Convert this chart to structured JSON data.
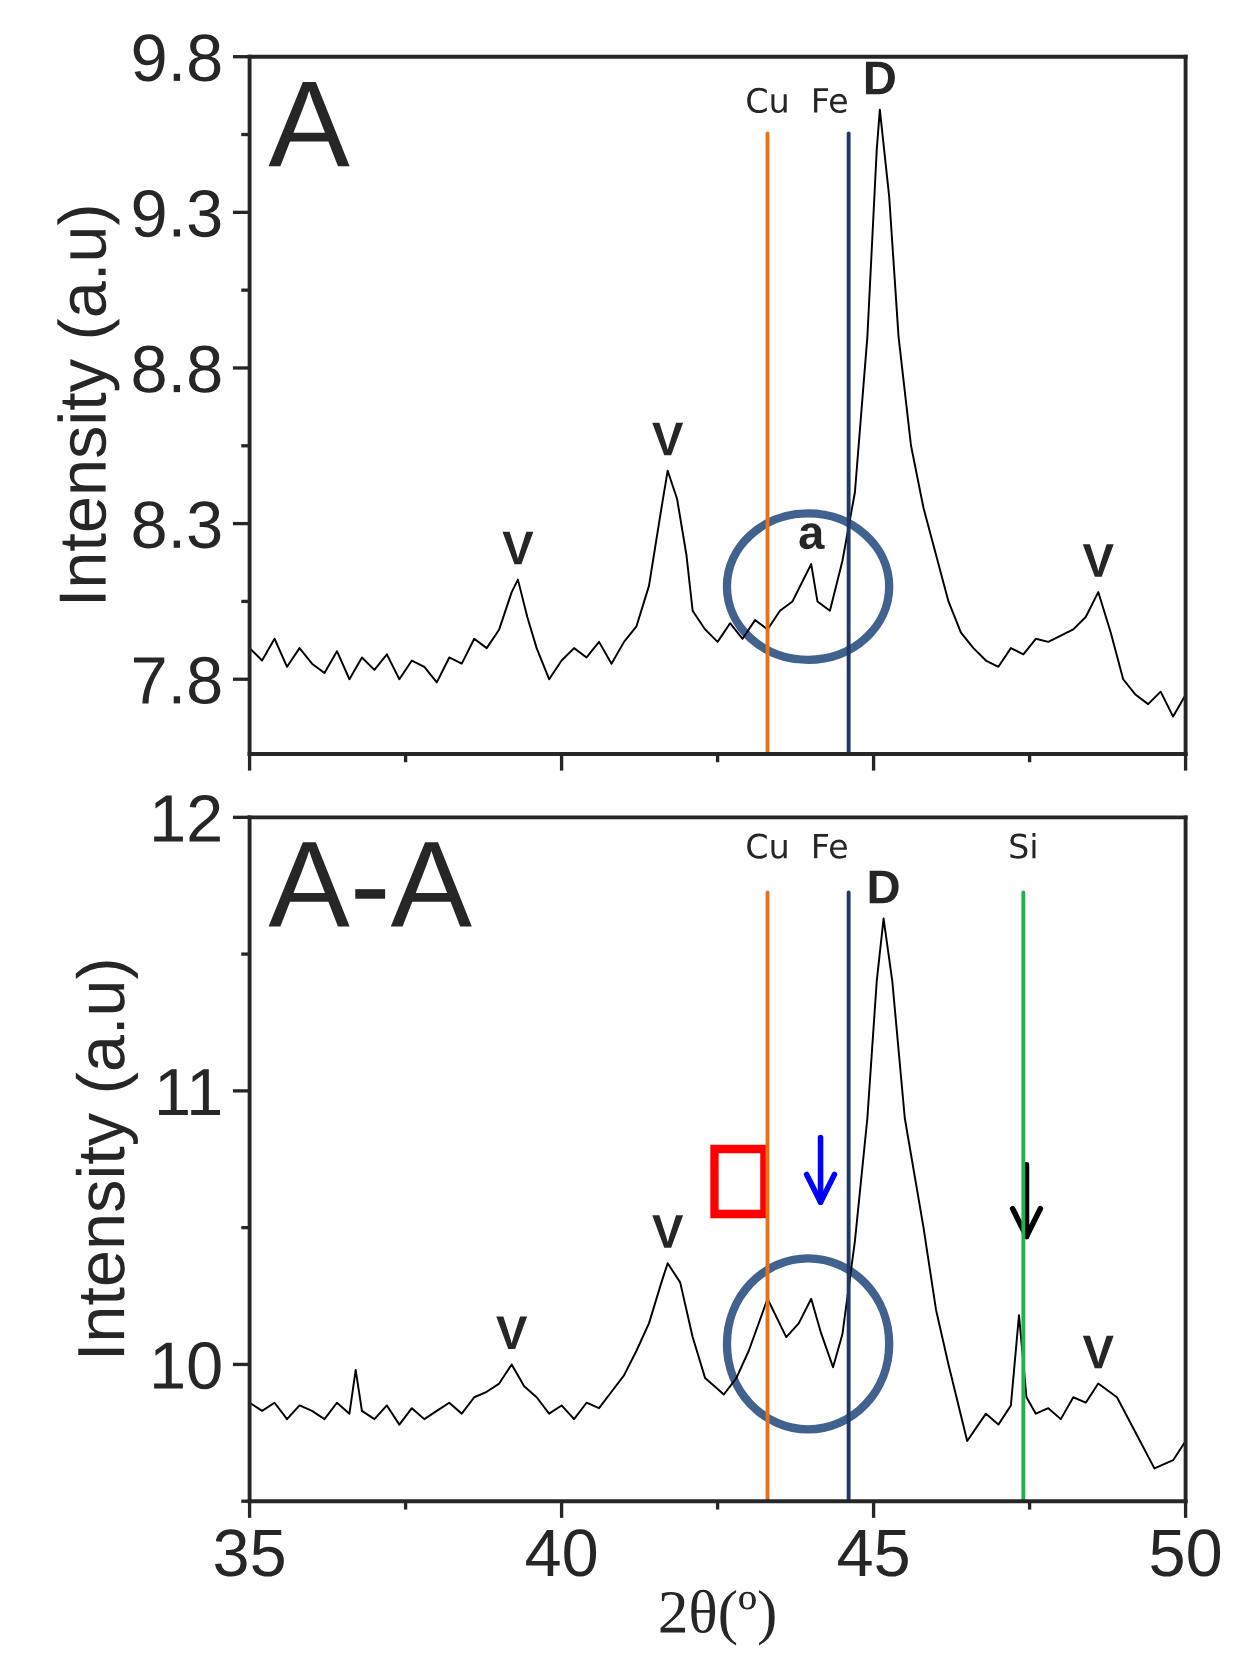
{
  "chart_data": [
    {
      "type": "line",
      "title": "A",
      "ylabel": "Intensity (a.u)",
      "x": [
        35.0,
        35.2,
        35.4,
        35.6,
        35.8,
        36.0,
        36.2,
        36.4,
        36.6,
        36.8,
        37.0,
        37.2,
        37.4,
        37.6,
        37.8,
        38.0,
        38.2,
        38.4,
        38.6,
        38.8,
        39.0,
        39.2,
        39.3,
        39.45,
        39.6,
        39.8,
        40.0,
        40.2,
        40.4,
        40.6,
        40.8,
        41.0,
        41.2,
        41.4,
        41.6,
        41.7,
        41.85,
        42.0,
        42.1,
        42.3,
        42.5,
        42.7,
        42.9,
        43.1,
        43.3,
        43.5,
        43.7,
        43.9,
        44.0,
        44.1,
        44.3,
        44.5,
        44.7,
        44.9,
        45.05,
        45.1,
        45.25,
        45.4,
        45.6,
        45.8,
        46.0,
        46.2,
        46.4,
        46.6,
        46.8,
        47.0,
        47.2,
        47.4,
        47.6,
        47.8,
        48.0,
        48.2,
        48.4,
        48.6,
        48.8,
        49.0,
        49.2,
        49.4,
        49.6,
        49.8,
        50.0
      ],
      "series": [
        {
          "color": "#000000",
          "values": [
            7.9,
            7.86,
            7.93,
            7.84,
            7.9,
            7.85,
            7.82,
            7.89,
            7.8,
            7.87,
            7.83,
            7.88,
            7.8,
            7.86,
            7.84,
            7.79,
            7.87,
            7.85,
            7.93,
            7.9,
            7.96,
            8.08,
            8.12,
            8.0,
            7.9,
            7.8,
            7.86,
            7.9,
            7.87,
            7.92,
            7.85,
            7.92,
            7.97,
            8.1,
            8.35,
            8.47,
            8.38,
            8.2,
            8.02,
            7.96,
            7.92,
            7.98,
            7.93,
            7.99,
            7.96,
            8.02,
            8.05,
            8.13,
            8.17,
            8.05,
            8.02,
            8.18,
            8.4,
            8.9,
            9.5,
            9.63,
            9.35,
            8.9,
            8.55,
            8.35,
            8.2,
            8.05,
            7.95,
            7.9,
            7.86,
            7.84,
            7.9,
            7.88,
            7.93,
            7.92,
            7.94,
            7.96,
            8.0,
            8.08,
            7.95,
            7.8,
            7.75,
            7.72,
            7.76,
            7.68,
            7.75
          ]
        }
      ],
      "xlim": [
        35,
        50
      ],
      "xticks": [
        35,
        40,
        45,
        50
      ],
      "ylim": [
        7.56,
        9.8
      ],
      "yticks": [
        7.8,
        8.3,
        8.8,
        9.3,
        9.8
      ],
      "tick_labels": "y",
      "ref_lines": [
        {
          "axis": "x",
          "value": 43.3,
          "label": "Cu",
          "color": "#e8711a"
        },
        {
          "axis": "x",
          "value": 44.6,
          "label": "Fe",
          "color": "#1f3864"
        }
      ],
      "annotations": [
        {
          "text": "V",
          "x": 39.3,
          "y": 8.12
        },
        {
          "text": "V",
          "x": 41.7,
          "y": 8.47
        },
        {
          "text": "a",
          "x": 44.0,
          "y": 8.17
        },
        {
          "text": "D",
          "x": 45.1,
          "y": 9.63
        },
        {
          "text": "V",
          "x": 48.6,
          "y": 8.08
        }
      ]
    },
    {
      "type": "line",
      "title": "A-A",
      "ylabel": "Intensity (a.u)",
      "xlabel": "2θ(º)",
      "x": [
        35.0,
        35.2,
        35.4,
        35.6,
        35.8,
        36.0,
        36.2,
        36.4,
        36.6,
        36.7,
        36.8,
        37.0,
        37.2,
        37.4,
        37.6,
        37.8,
        38.0,
        38.2,
        38.4,
        38.6,
        38.8,
        39.0,
        39.2,
        39.4,
        39.6,
        39.8,
        40.0,
        40.2,
        40.4,
        40.6,
        40.8,
        41.0,
        41.2,
        41.4,
        41.6,
        41.7,
        41.9,
        42.1,
        42.3,
        42.6,
        42.8,
        43.0,
        43.3,
        43.6,
        43.8,
        44.0,
        44.15,
        44.35,
        44.5,
        44.7,
        44.9,
        45.05,
        45.16,
        45.3,
        45.5,
        45.8,
        46.0,
        46.2,
        46.5,
        46.8,
        47.0,
        47.2,
        47.33,
        47.45,
        47.6,
        47.8,
        48.0,
        48.2,
        48.4,
        48.6,
        48.9,
        49.2,
        49.5,
        49.8,
        50.0
      ],
      "series": [
        {
          "color": "#000000",
          "values": [
            9.86,
            9.83,
            9.86,
            9.8,
            9.85,
            9.83,
            9.8,
            9.86,
            9.82,
            9.98,
            9.83,
            9.8,
            9.85,
            9.78,
            9.84,
            9.8,
            9.83,
            9.86,
            9.82,
            9.88,
            9.9,
            9.93,
            10.0,
            9.92,
            9.88,
            9.82,
            9.85,
            9.8,
            9.86,
            9.84,
            9.9,
            9.96,
            10.05,
            10.15,
            10.3,
            10.37,
            10.3,
            10.1,
            9.95,
            9.89,
            9.95,
            10.05,
            10.24,
            10.1,
            10.15,
            10.24,
            10.12,
            9.99,
            10.11,
            10.45,
            10.9,
            11.4,
            11.63,
            11.4,
            10.9,
            10.5,
            10.2,
            10.0,
            9.72,
            9.82,
            9.78,
            9.85,
            10.18,
            9.88,
            9.82,
            9.84,
            9.8,
            9.88,
            9.86,
            9.93,
            9.88,
            9.75,
            9.62,
            9.65,
            9.72
          ]
        }
      ],
      "xlim": [
        35,
        50
      ],
      "xticks": [
        35,
        40,
        45,
        50
      ],
      "ylim": [
        9.5,
        12
      ],
      "yticks": [
        10,
        11,
        12
      ],
      "ref_lines": [
        {
          "axis": "x",
          "value": 43.3,
          "label": "Cu",
          "color": "#e8711a"
        },
        {
          "axis": "x",
          "value": 44.6,
          "label": "Fe",
          "color": "#1f3864"
        },
        {
          "axis": "x",
          "value": 47.4,
          "label": "Si",
          "color": "#22b14c"
        }
      ],
      "annotations": [
        {
          "text": "V",
          "x": 39.2,
          "y": 10.0
        },
        {
          "text": "V",
          "x": 41.7,
          "y": 10.37
        },
        {
          "text": "D",
          "x": 45.16,
          "y": 11.63
        },
        {
          "text": "V",
          "x": 48.6,
          "y": 9.93
        }
      ]
    }
  ]
}
